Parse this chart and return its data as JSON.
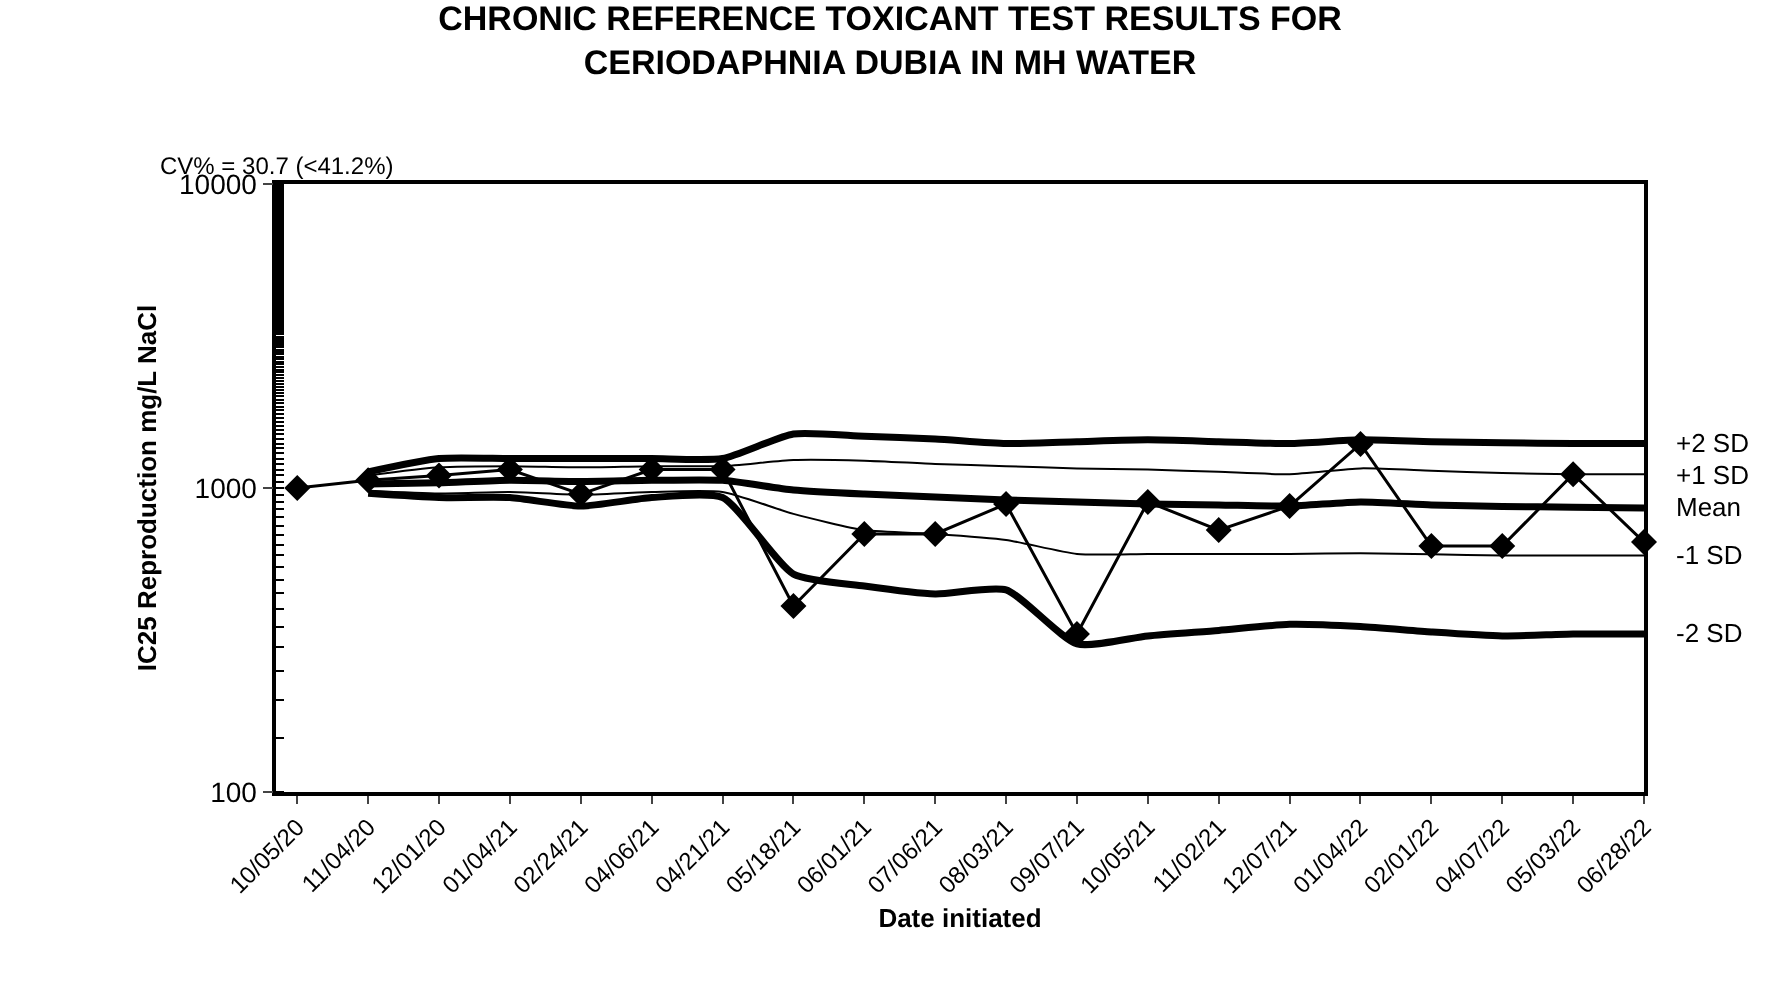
{
  "chart_data": {
    "type": "line",
    "title": "CHRONIC REFERENCE TOXICANT TEST RESULTS FOR\nCERIODAPHNIA DUBIA IN MH WATER",
    "xlabel": "Date initiated",
    "ylabel": "IC25 Reproduction mg/L NaCl",
    "annotations": [
      "CV% = 30.7 (<41.2%)"
    ],
    "categories": [
      "10/05/20",
      "11/04/20",
      "12/01/20",
      "01/04/21",
      "02/24/21",
      "04/06/21",
      "04/21/21",
      "05/18/21",
      "06/01/21",
      "07/06/21",
      "08/03/21",
      "09/07/21",
      "10/05/21",
      "11/02/21",
      "12/07/21",
      "01/04/22",
      "02/01/22",
      "04/07/22",
      "05/03/22",
      "06/28/22"
    ],
    "log": true,
    "ylim": [
      100,
      10000
    ],
    "yticks": [
      100,
      1000,
      10000
    ],
    "grid": false,
    "legend": false,
    "series": [
      {
        "color": "#000000",
        "marker": "diamond",
        "values": [
          1000,
          1060,
          1100,
          1150,
          955,
          1150,
          1150,
          409,
          706,
          706,
          886,
          331,
          900,
          727,
          872,
          1396,
          644,
          644,
          1110,
          664
        ]
      },
      {
        "name": "+2 SD",
        "color": "#000000",
        "marker": "none",
        "values": [
          null,
          1130,
          1250,
          1250,
          1250,
          1250,
          1250,
          1506,
          1480,
          1450,
          1400,
          1420,
          1440,
          1420,
          1400,
          1440,
          1420,
          1410,
          1400,
          1400
        ]
      },
      {
        "name": "+1 SD",
        "color": "#000000",
        "marker": "none",
        "values": [
          null,
          1100,
          1170,
          1180,
          1170,
          1180,
          1180,
          1236,
          1230,
          1200,
          1180,
          1160,
          1150,
          1130,
          1110,
          1160,
          1140,
          1120,
          1110,
          1110
        ]
      },
      {
        "name": "Mean",
        "color": "#000000",
        "marker": "none",
        "values": [
          null,
          1030,
          1040,
          1060,
          1050,
          1060,
          1060,
          985,
          955,
          935,
          913,
          900,
          886,
          880,
          872,
          900,
          880,
          870,
          865,
          860
        ]
      },
      {
        "name": "-1 SD",
        "color": "#000000",
        "marker": "none",
        "values": [
          null,
          980,
          960,
          970,
          950,
          970,
          970,
          822,
          727,
          706,
          675,
          607,
          607,
          607,
          607,
          610,
          605,
          600,
          600,
          600
        ]
      },
      {
        "name": "-2 SD",
        "color": "#000000",
        "marker": "none",
        "values": [
          null,
          960,
          930,
          930,
          872,
          930,
          930,
          521,
          476,
          448,
          462,
          307,
          326,
          340,
          356,
          350,
          336,
          326,
          331,
          331
        ]
      }
    ]
  }
}
